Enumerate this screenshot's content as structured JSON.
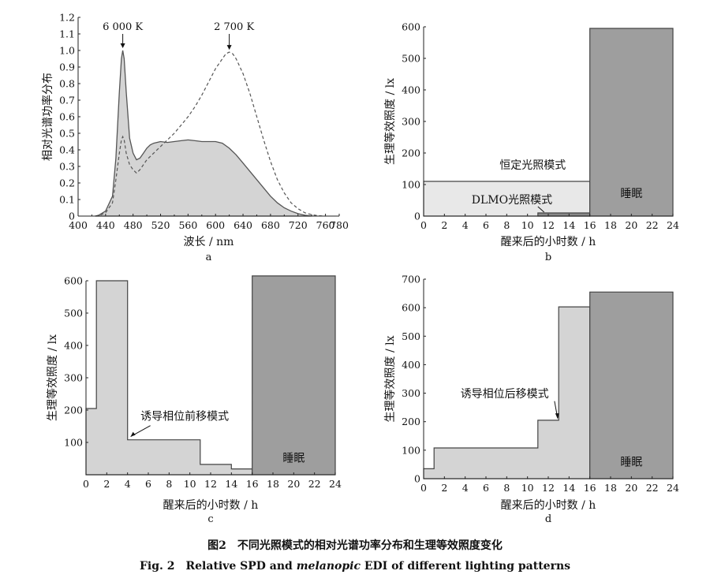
{
  "caption": {
    "zh": "图2　不同光照模式的相对光谱功率分布和生理等效照度变化",
    "en_prefix": "Fig. 2　Relative SPD and ",
    "en_italic": "melanopic",
    "en_suffix": " EDI of different lighting patterns"
  },
  "colors": {
    "light_fill": "#d4d4d4",
    "dark_fill": "#9e9e9e",
    "mid_fill": "#bdbdbd",
    "line": "#555555",
    "axis": "#222222"
  },
  "chart_data": [
    {
      "id": "a",
      "type": "area",
      "panel_label": "a",
      "xlabel": "波长 / nm",
      "ylabel": "相对光谱功率分布",
      "xlim": [
        400,
        780
      ],
      "ylim": [
        0,
        1.2
      ],
      "xticks": [
        "400",
        "440",
        "480",
        "520",
        "560",
        "600",
        "640",
        "680",
        "720",
        "760",
        "780"
      ],
      "yticks": [
        "0",
        "0.1",
        "0.2",
        "0.3",
        "0.4",
        "0.5",
        "0.6",
        "0.7",
        "0.8",
        "0.9",
        "1.0",
        "1.1",
        "1.2"
      ],
      "series": [
        {
          "name": "6 000 K",
          "style": "filled-solid",
          "x": [
            425,
            430,
            440,
            450,
            455,
            460,
            463,
            465,
            467,
            470,
            475,
            480,
            485,
            490,
            495,
            500,
            505,
            510,
            520,
            530,
            540,
            550,
            560,
            570,
            580,
            590,
            600,
            610,
            620,
            630,
            640,
            650,
            660,
            670,
            680,
            690,
            700,
            710,
            720,
            730,
            740
          ],
          "y": [
            0,
            0.005,
            0.03,
            0.12,
            0.35,
            0.75,
            0.95,
            1.0,
            0.95,
            0.75,
            0.47,
            0.38,
            0.34,
            0.35,
            0.38,
            0.41,
            0.43,
            0.44,
            0.45,
            0.445,
            0.45,
            0.455,
            0.46,
            0.455,
            0.45,
            0.45,
            0.45,
            0.44,
            0.41,
            0.37,
            0.32,
            0.27,
            0.22,
            0.17,
            0.12,
            0.08,
            0.05,
            0.03,
            0.015,
            0.005,
            0
          ]
        },
        {
          "name": "2 700 K",
          "style": "dashed",
          "x": [
            425,
            430,
            440,
            450,
            455,
            460,
            463,
            465,
            467,
            470,
            475,
            480,
            485,
            490,
            495,
            500,
            510,
            520,
            530,
            540,
            550,
            560,
            570,
            580,
            590,
            600,
            610,
            615,
            620,
            625,
            630,
            640,
            650,
            660,
            670,
            680,
            690,
            700,
            710,
            720,
            730,
            740,
            750,
            760
          ],
          "y": [
            0,
            0.002,
            0.02,
            0.08,
            0.22,
            0.38,
            0.46,
            0.48,
            0.46,
            0.38,
            0.31,
            0.28,
            0.26,
            0.28,
            0.31,
            0.34,
            0.38,
            0.42,
            0.46,
            0.5,
            0.55,
            0.6,
            0.66,
            0.73,
            0.81,
            0.89,
            0.95,
            0.98,
            0.99,
            0.98,
            0.95,
            0.86,
            0.74,
            0.6,
            0.46,
            0.33,
            0.22,
            0.14,
            0.08,
            0.045,
            0.02,
            0.008,
            0.002,
            0
          ]
        }
      ],
      "annotations": [
        {
          "text": "6 000 K",
          "x": 465,
          "y": 1.0
        },
        {
          "text": "2 700 K",
          "x": 620,
          "y": 0.99
        }
      ]
    },
    {
      "id": "b",
      "type": "area",
      "panel_label": "b",
      "xlabel": "醒来后的小时数 / h",
      "ylabel": "生理等效照度 / lx",
      "xlim": [
        0,
        24
      ],
      "ylim": [
        0,
        600
      ],
      "xticks": [
        "0",
        "2",
        "4",
        "6",
        "8",
        "10",
        "12",
        "14",
        "16",
        "18",
        "20",
        "22",
        "24"
      ],
      "yticks": [
        "0",
        "100",
        "200",
        "300",
        "400",
        "500",
        "600"
      ],
      "series": [
        {
          "name": "恒定光照模式",
          "x": [
            0,
            16
          ],
          "y": [
            110,
            110
          ]
        },
        {
          "name": "DLMO光照模式",
          "x": [
            11,
            16
          ],
          "y": [
            10,
            10
          ]
        },
        {
          "name": "睡眠",
          "x": [
            16,
            24
          ],
          "y": [
            595,
            595
          ]
        }
      ],
      "annotations": [
        {
          "text": "恒定光照模式"
        },
        {
          "text": "DLMO光照模式"
        },
        {
          "text": "睡眠"
        }
      ]
    },
    {
      "id": "c",
      "type": "area",
      "panel_label": "c",
      "xlabel": "醒来后的小时数 / h",
      "ylabel": "生理等效照度 / lx",
      "xlim": [
        0,
        24
      ],
      "ylim": [
        0,
        600
      ],
      "xticks": [
        "0",
        "2",
        "4",
        "6",
        "8",
        "10",
        "12",
        "14",
        "16",
        "18",
        "20",
        "22",
        "24"
      ],
      "yticks": [
        "100",
        "200",
        "300",
        "400",
        "500",
        "600"
      ],
      "series": [
        {
          "name": "诱导相位前移模式",
          "x": [
            0,
            1,
            1,
            4,
            4,
            11,
            11,
            14,
            14,
            16
          ],
          "y": [
            205,
            205,
            600,
            600,
            108,
            108,
            32,
            32,
            18,
            18
          ]
        },
        {
          "name": "睡眠",
          "x": [
            16,
            24
          ],
          "y": [
            615,
            615
          ]
        }
      ],
      "annotations": [
        {
          "text": "诱导相位前移模式"
        },
        {
          "text": "睡眠"
        }
      ]
    },
    {
      "id": "d",
      "type": "area",
      "panel_label": "d",
      "xlabel": "醒来后的小时数 / h",
      "ylabel": "生理等效照度 / lx",
      "xlim": [
        0,
        24
      ],
      "ylim": [
        0,
        700
      ],
      "xticks": [
        "0",
        "2",
        "4",
        "6",
        "8",
        "10",
        "12",
        "14",
        "16",
        "18",
        "20",
        "22",
        "24"
      ],
      "yticks": [
        "0",
        "100",
        "200",
        "300",
        "400",
        "500",
        "600",
        "700"
      ],
      "series": [
        {
          "name": "诱导相位后移模式",
          "x": [
            0,
            1,
            1,
            11,
            11,
            13,
            13,
            16
          ],
          "y": [
            35,
            35,
            108,
            108,
            205,
            205,
            603,
            603
          ]
        },
        {
          "name": "睡眠",
          "x": [
            16,
            24
          ],
          "y": [
            655,
            655
          ]
        }
      ],
      "annotations": [
        {
          "text": "诱导相位后移模式"
        },
        {
          "text": "睡眠"
        }
      ]
    }
  ]
}
